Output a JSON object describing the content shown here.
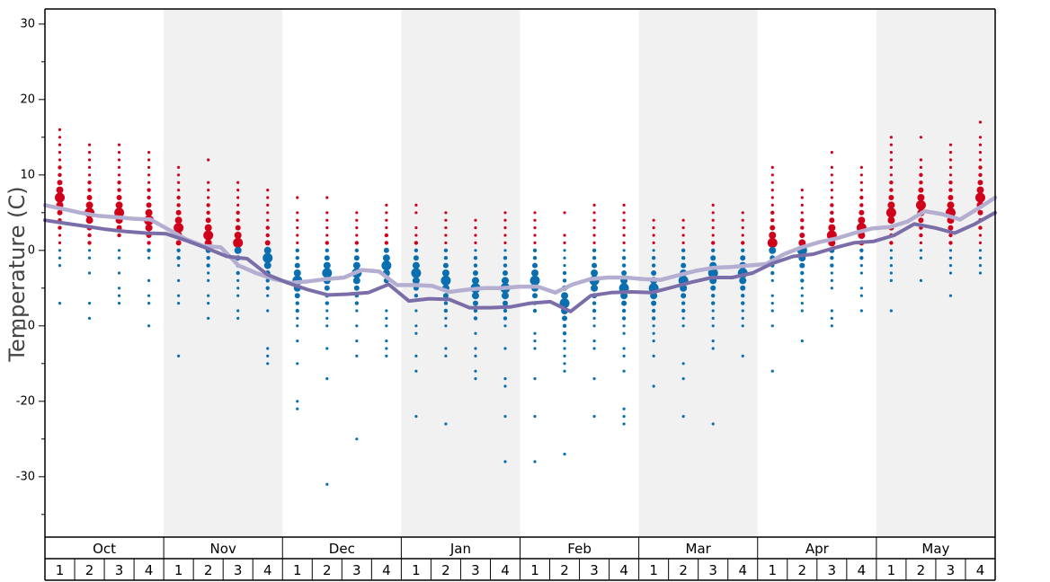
{
  "chart_data": {
    "type": "scatter",
    "ylabel": "Temperature (C)",
    "ylim": [
      -38,
      32
    ],
    "yticks": [
      30,
      20,
      10,
      0,
      -10,
      -20,
      -30
    ],
    "months": [
      "Oct",
      "Nov",
      "Dec",
      "Jan",
      "Feb",
      "Mar",
      "Apr",
      "May"
    ],
    "weeks": [
      "1",
      "2",
      "3",
      "4"
    ],
    "shaded_months": [
      "Nov",
      "Jan",
      "Mar",
      "May"
    ],
    "colors": {
      "warm_dots": "#d0021b",
      "cold_dots": "#0a6fb0",
      "line_light": "#b4aed0",
      "line_dark": "#7b6ea8",
      "shade": "#f1f1f1"
    },
    "series": [
      {
        "values": [
          6,
          5.5,
          5,
          4.6,
          4.4,
          4.2,
          4.1,
          2.8,
          1.5,
          0.6,
          0.4,
          -2,
          -3,
          -3.8,
          -4.3,
          -4.1,
          -3.8,
          -3.6,
          -2.6,
          -2.8,
          -4.6,
          -4.6,
          -4.7,
          -5.5,
          -5.2,
          -5,
          -5,
          -4.8,
          -4.8,
          -5.6,
          -4.5,
          -3.8,
          -3.6,
          -3.6,
          -3.8,
          -3.9,
          -3.3,
          -2.7,
          -2.3,
          -2.2,
          -2,
          -1.8,
          -0.5,
          0.4,
          1.1,
          1.6,
          2.3,
          2.9,
          3.1,
          3.8,
          5.2,
          4.8,
          4.1,
          5.5,
          7
        ]
      },
      {
        "values": [
          4,
          3.6,
          3.2,
          2.8,
          2.5,
          2.3,
          2.2,
          1.3,
          0.3,
          -0.8,
          -1.1,
          -3.2,
          -4.3,
          -5.2,
          -5.9,
          -5.8,
          -5.6,
          -4.5,
          -6.7,
          -6.4,
          -6.5,
          -7.6,
          -7.6,
          -7.5,
          -7,
          -6.8,
          -8.1,
          -6,
          -5.6,
          -5.5,
          -5.6,
          -4.9,
          -4.2,
          -3.6,
          -3.6,
          -3,
          -1.7,
          -0.8,
          -0.5,
          0.3,
          1,
          1.2,
          2,
          3.5,
          3,
          2.3,
          3.5,
          5
        ]
      }
    ],
    "weekly_dots": [
      {
        "warm": [
          16,
          15,
          14,
          13,
          12,
          11,
          10,
          9,
          8,
          7,
          6,
          5,
          4,
          3,
          2,
          1
        ],
        "cold": [
          0,
          -1,
          -2,
          -7
        ]
      },
      {
        "warm": [
          14,
          13,
          12,
          11,
          10,
          9,
          8,
          7,
          6,
          5,
          4,
          3,
          2,
          1
        ],
        "cold": [
          0,
          -1,
          -3,
          -7,
          -9
        ]
      },
      {
        "warm": [
          14,
          13,
          12,
          11,
          10,
          9,
          8,
          7,
          6,
          5,
          4,
          3,
          2
        ],
        "cold": [
          0,
          -1,
          -3,
          -5,
          -6,
          -7
        ]
      },
      {
        "warm": [
          13,
          12,
          11,
          10,
          9,
          8,
          7,
          6,
          5,
          4,
          3,
          2,
          1
        ],
        "cold": [
          0,
          -1,
          -4,
          -6,
          -7,
          -10
        ]
      },
      {
        "warm": [
          11,
          10,
          9,
          8,
          7,
          6,
          5,
          4,
          3,
          2,
          1
        ],
        "cold": [
          0,
          -1,
          -2,
          -4,
          -6,
          -7,
          -14
        ]
      },
      {
        "warm": [
          12,
          9,
          8,
          7,
          6,
          5,
          4,
          3,
          2,
          1
        ],
        "cold": [
          0,
          -1,
          -2,
          -3,
          -4,
          -6,
          -7,
          -9
        ]
      },
      {
        "warm": [
          9,
          8,
          7,
          6,
          5,
          4,
          3,
          2,
          1
        ],
        "cold": [
          0,
          -1,
          -2,
          -3,
          -4,
          -5,
          -6,
          -8,
          -9
        ]
      },
      {
        "warm": [
          8,
          7,
          6,
          5,
          4,
          3,
          2,
          1
        ],
        "cold": [
          0,
          -1,
          -2,
          -3,
          -4,
          -5,
          -6,
          -8,
          -13,
          -14,
          -15
        ]
      },
      {
        "warm": [
          7,
          5,
          4,
          3,
          2,
          1
        ],
        "cold": [
          0,
          -1,
          -2,
          -3,
          -4,
          -5,
          -6,
          -7,
          -8,
          -9,
          -10,
          -12,
          -15,
          -20,
          -21
        ]
      },
      {
        "warm": [
          7,
          5,
          4,
          3,
          2,
          1
        ],
        "cold": [
          0,
          -1,
          -2,
          -3,
          -4,
          -5,
          -6,
          -7,
          -8,
          -9,
          -10,
          -13,
          -17,
          -31
        ]
      },
      {
        "warm": [
          5,
          4,
          3,
          2,
          1
        ],
        "cold": [
          0,
          -1,
          -2,
          -3,
          -4,
          -5,
          -6,
          -7,
          -8,
          -10,
          -12,
          -14,
          -25
        ]
      },
      {
        "warm": [
          6,
          5,
          4,
          3,
          2,
          1
        ],
        "cold": [
          0,
          -1,
          -2,
          -3,
          -4,
          -8,
          -9,
          -10,
          -12,
          -13,
          -14
        ]
      },
      {
        "warm": [
          6,
          5,
          3,
          2,
          1
        ],
        "cold": [
          0,
          -1,
          -2,
          -3,
          -4,
          -5,
          -6,
          -8,
          -10,
          -11,
          -14,
          -16,
          -22
        ]
      },
      {
        "warm": [
          5,
          4,
          3,
          2,
          1
        ],
        "cold": [
          0,
          -1,
          -2,
          -3,
          -4,
          -5,
          -6,
          -7,
          -8,
          -9,
          -10,
          -13,
          -14,
          -23
        ]
      },
      {
        "warm": [
          4,
          3,
          2,
          1
        ],
        "cold": [
          0,
          -1,
          -2,
          -3,
          -4,
          -5,
          -6,
          -7,
          -8,
          -9,
          -11,
          -13,
          -14,
          -16,
          -17
        ]
      },
      {
        "warm": [
          5,
          4,
          3,
          2,
          1
        ],
        "cold": [
          0,
          -1,
          -2,
          -3,
          -4,
          -5,
          -6,
          -7,
          -8,
          -9,
          -10,
          -13,
          -17,
          -18,
          -22,
          -28
        ]
      },
      {
        "warm": [
          5,
          4,
          3,
          2,
          1
        ],
        "cold": [
          0,
          -1,
          -2,
          -3,
          -4,
          -5,
          -6,
          -7,
          -8,
          -11,
          -12,
          -13,
          -17,
          -22,
          -28
        ]
      },
      {
        "warm": [
          5,
          2,
          1
        ],
        "cold": [
          0,
          -1,
          -2,
          -3,
          -4,
          -5,
          -6,
          -7,
          -8,
          -9,
          -10,
          -11,
          -12,
          -13,
          -14,
          -15,
          -16,
          -27
        ]
      },
      {
        "warm": [
          6,
          5,
          4,
          3,
          2,
          1
        ],
        "cold": [
          0,
          -1,
          -2,
          -3,
          -4,
          -5,
          -6,
          -7,
          -8,
          -9,
          -10,
          -12,
          -13,
          -17,
          -22
        ]
      },
      {
        "warm": [
          6,
          5,
          4,
          3,
          2,
          1
        ],
        "cold": [
          0,
          -1,
          -2,
          -3,
          -4,
          -5,
          -6,
          -7,
          -8,
          -9,
          -10,
          -11,
          -13,
          -14,
          -16,
          -21,
          -22,
          -23
        ]
      },
      {
        "warm": [
          4,
          3,
          2,
          1
        ],
        "cold": [
          0,
          -1,
          -2,
          -3,
          -4,
          -5,
          -6,
          -7,
          -8,
          -9,
          -10,
          -11,
          -12,
          -14,
          -18
        ]
      },
      {
        "warm": [
          4,
          3,
          2,
          1
        ],
        "cold": [
          0,
          -1,
          -2,
          -3,
          -4,
          -5,
          -6,
          -7,
          -8,
          -9,
          -10,
          -15,
          -17,
          -22
        ]
      },
      {
        "warm": [
          6,
          5,
          4,
          3,
          2,
          1
        ],
        "cold": [
          0,
          -1,
          -2,
          -3,
          -4,
          -5,
          -6,
          -7,
          -8,
          -9,
          -10,
          -12,
          -13,
          -23
        ]
      },
      {
        "warm": [
          5,
          4,
          3,
          2,
          1
        ],
        "cold": [
          0,
          -1,
          -2,
          -3,
          -4,
          -5,
          -6,
          -7,
          -8,
          -9,
          -10,
          -14
        ]
      },
      {
        "warm": [
          11,
          10,
          9,
          8,
          7,
          6,
          5,
          4,
          3,
          2,
          1
        ],
        "cold": [
          0,
          -1,
          -2,
          -3,
          -4,
          -6,
          -7,
          -8,
          -10,
          -16
        ]
      },
      {
        "warm": [
          8,
          7,
          6,
          5,
          4,
          3,
          2,
          1
        ],
        "cold": [
          0,
          -1,
          -2,
          -3,
          -4,
          -5,
          -6,
          -7,
          -8,
          -12
        ]
      },
      {
        "warm": [
          13,
          11,
          10,
          9,
          8,
          7,
          6,
          5,
          4,
          3,
          2,
          1
        ],
        "cold": [
          0,
          -1,
          -2,
          -3,
          -4,
          -5,
          -8,
          -9,
          -10
        ]
      },
      {
        "warm": [
          11,
          10,
          9,
          8,
          7,
          6,
          5,
          4,
          3,
          2,
          1
        ],
        "cold": [
          0,
          -1,
          -2,
          -3,
          -5,
          -6,
          -8
        ]
      },
      {
        "warm": [
          15,
          14,
          13,
          12,
          11,
          10,
          9,
          8,
          7,
          6,
          5,
          4,
          3,
          2,
          1
        ],
        "cold": [
          0,
          -1,
          -2,
          -3,
          -4,
          -8
        ]
      },
      {
        "warm": [
          15,
          12,
          11,
          10,
          9,
          8,
          7,
          6,
          5,
          4,
          3,
          2,
          1
        ],
        "cold": [
          0,
          -1,
          -4
        ]
      },
      {
        "warm": [
          14,
          13,
          12,
          11,
          10,
          9,
          8,
          7,
          6,
          5,
          4,
          3,
          2,
          1
        ],
        "cold": [
          0,
          -1,
          -2,
          -3,
          -6
        ]
      },
      {
        "warm": [
          17,
          15,
          14,
          13,
          12,
          11,
          10,
          9,
          8,
          7,
          6,
          5,
          4,
          3,
          2,
          1
        ],
        "cold": [
          0,
          -1,
          -2,
          -3
        ]
      }
    ]
  }
}
